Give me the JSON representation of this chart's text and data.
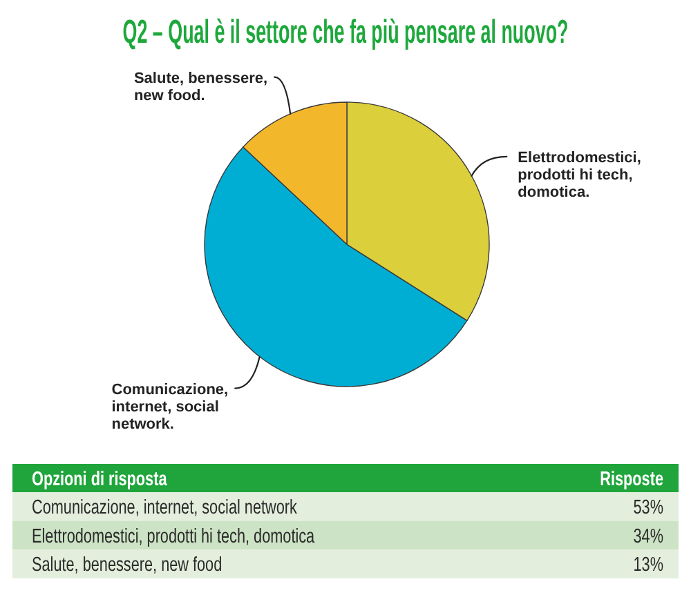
{
  "chart_data": {
    "type": "pie",
    "title": "Q2 – Qual è il settore che fa più pensare al nuovo?",
    "categories": [
      "Comunicazione,\ninternet, social\nnetwork.",
      "Elettrodomestici,\nprodotti hi tech,\ndomotica.",
      "Salute, benessere,\nnew food."
    ],
    "values": [
      53,
      34,
      13
    ],
    "colors": [
      "#00aed4",
      "#dbcf3b",
      "#f2b72b"
    ],
    "annotations": [
      "Opzioni di risposta",
      "Risposte",
      "Comunicazione, internet, social network",
      "53%",
      "Elettrodomestici, prodotti hi tech, domotica",
      "34%",
      "Salute, benessere, new food",
      "13%"
    ]
  }
}
